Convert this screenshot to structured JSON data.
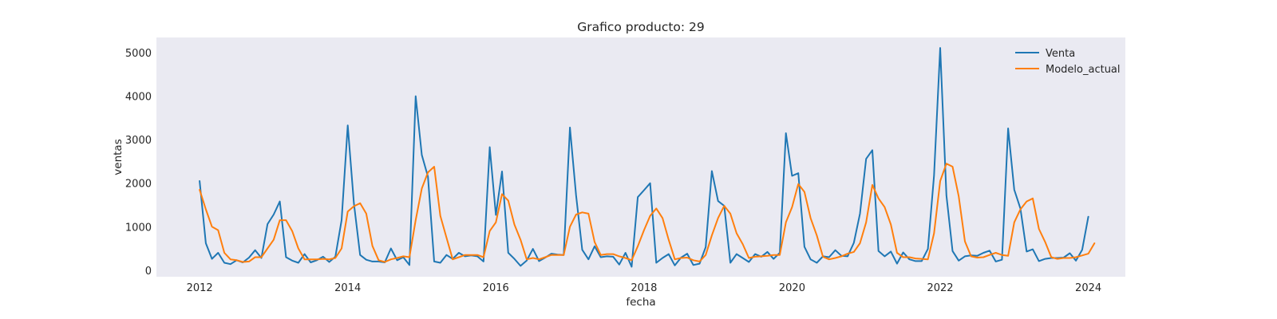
{
  "chart_data": {
    "type": "line",
    "title": "Grafico producto: 29",
    "xlabel": "fecha",
    "ylabel": "ventas",
    "xlim": [
      "2011-06-01",
      "2024-07-01"
    ],
    "ylim": [
      -150,
      5350
    ],
    "x_ticks": [
      "2012",
      "2014",
      "2016",
      "2018",
      "2020",
      "2022",
      "2024"
    ],
    "y_ticks": [
      0,
      1000,
      2000,
      3000,
      4000,
      5000
    ],
    "grid": false,
    "legend_position": "top-right",
    "background_color": "#eaeaf2",
    "x_start": "2012-01",
    "x_step": "1 month",
    "series": [
      {
        "name": "Venta",
        "color": "#1f77b4",
        "values": [
          2050,
          620,
          260,
          400,
          170,
          140,
          230,
          180,
          290,
          460,
          280,
          1060,
          1280,
          1580,
          300,
          220,
          170,
          370,
          180,
          230,
          310,
          190,
          310,
          1150,
          3330,
          1540,
          350,
          240,
          200,
          200,
          180,
          500,
          230,
          300,
          120,
          4000,
          2650,
          2150,
          200,
          170,
          350,
          260,
          400,
          320,
          340,
          320,
          200,
          2830,
          1270,
          2270,
          400,
          260,
          100,
          220,
          490,
          210,
          290,
          380,
          360,
          350,
          3280,
          1720,
          470,
          250,
          550,
          300,
          320,
          310,
          130,
          400,
          80,
          1680,
          1840,
          2000,
          170,
          280,
          370,
          110,
          290,
          380,
          120,
          150,
          530,
          2280,
          1590,
          1480,
          170,
          370,
          280,
          190,
          370,
          310,
          420,
          260,
          400,
          3150,
          2170,
          2230,
          540,
          250,
          170,
          320,
          300,
          460,
          330,
          320,
          630,
          1300,
          2560,
          2760,
          440,
          320,
          430,
          150,
          410,
          250,
          210,
          210,
          490,
          2180,
          5110,
          1720,
          440,
          220,
          320,
          340,
          330,
          400,
          450,
          200,
          240,
          3260,
          1850,
          1420,
          430,
          480,
          210,
          260,
          280,
          280,
          290,
          390,
          220,
          470,
          1230
        ]
      },
      {
        "name": "Modelo_actual",
        "color": "#ff7f0e",
        "values": [
          1850,
          1400,
          1000,
          920,
          400,
          250,
          230,
          190,
          200,
          300,
          300,
          500,
          700,
          1150,
          1150,
          900,
          500,
          250,
          250,
          250,
          260,
          250,
          280,
          500,
          1350,
          1470,
          1540,
          1300,
          560,
          230,
          190,
          250,
          280,
          320,
          300,
          1150,
          1880,
          2250,
          2380,
          1250,
          750,
          250,
          300,
          350,
          350,
          350,
          300,
          900,
          1100,
          1750,
          1600,
          1050,
          700,
          250,
          280,
          250,
          300,
          350,
          350,
          350,
          1000,
          1280,
          1330,
          1300,
          650,
          350,
          370,
          370,
          320,
          280,
          230,
          550,
          920,
          1250,
          1420,
          1200,
          700,
          250,
          280,
          290,
          230,
          200,
          350,
          800,
          1200,
          1480,
          1300,
          850,
          600,
          280,
          310,
          320,
          330,
          350,
          350,
          1100,
          1450,
          1980,
          1800,
          1200,
          800,
          310,
          250,
          280,
          320,
          380,
          420,
          620,
          1100,
          1960,
          1650,
          1450,
          1050,
          400,
          300,
          300,
          270,
          260,
          250,
          850,
          2050,
          2450,
          2380,
          1700,
          660,
          320,
          290,
          300,
          350,
          400,
          350,
          330,
          1100,
          1400,
          1580,
          1650,
          950,
          650,
          300,
          260,
          280,
          280,
          300,
          340,
          380,
          620
        ]
      }
    ]
  }
}
